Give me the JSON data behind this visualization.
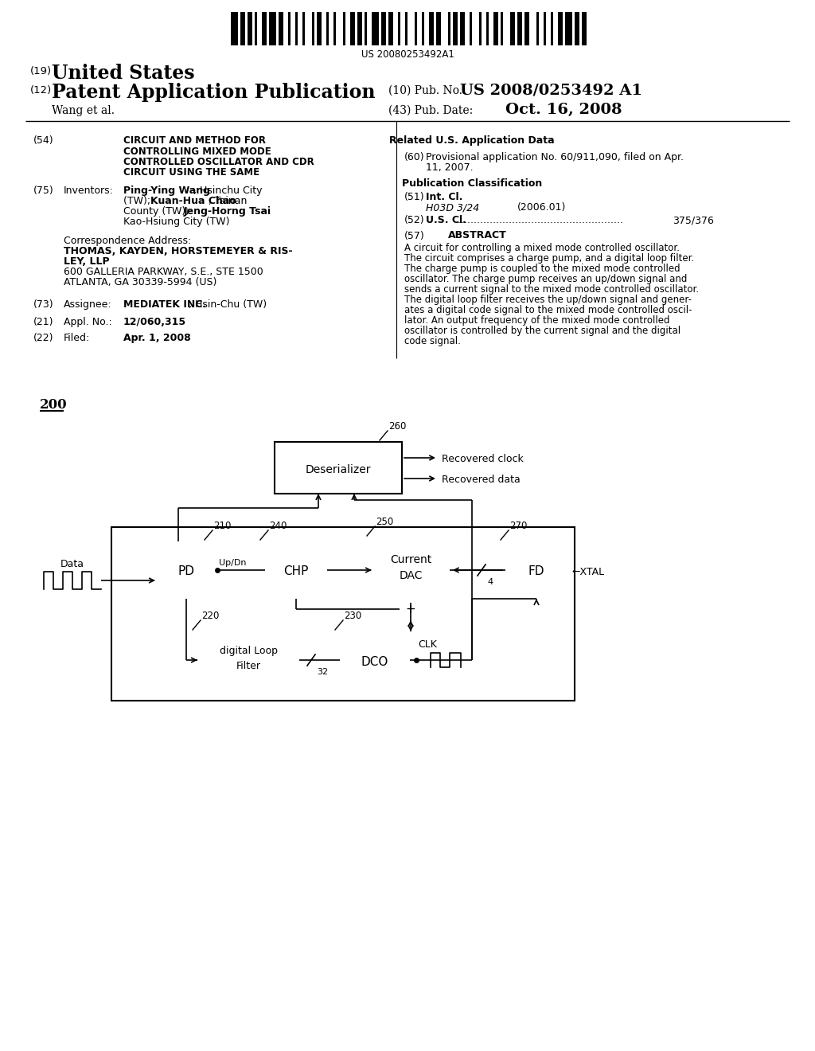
{
  "background_color": "#ffffff",
  "barcode_text": "US 20080253492A1",
  "header_19": "(19)",
  "header_19_text": "United States",
  "header_12": "(12)",
  "header_12_text": "Patent Application Publication",
  "header_10_label": "(10) Pub. No.:",
  "header_10_value": "US 2008/0253492 A1",
  "author": "Wang et al.",
  "header_43_label": "(43) Pub. Date:",
  "header_43_value": "Oct. 16, 2008",
  "section54_num": "(54)",
  "section54_text": "CIRCUIT AND METHOD FOR\nCONTROLLING MIXED MODE\nCONTROLLED OSCILLATOR AND CDR\nCIRCUIT USING THE SAME",
  "section75_num": "(75)",
  "section75_label": "Inventors:",
  "section75_text": "Ping-Ying Wang, Hsinchu City\n(TW); Kuan-Hua Chao, Tainan\nCounty (TW); Jeng-Horng Tsai,\nKao-Hsiung City (TW)",
  "correspondence_label": "Correspondence Address:",
  "correspondence_text": "THOMAS, KAYDEN, HORSTEMEYER & RIS-\nLEY, LLP\n600 GALLERIA PARKWAY, S.E., STE 1500\nATLANTA, GA 30339-5994 (US)",
  "section73_num": "(73)",
  "section73_label": "Assignee:",
  "section73_bold": "MEDIATEK INC.",
  "section73_rest": ", Hsin-Chu (TW)",
  "section21_num": "(21)",
  "section21_label": "Appl. No.:",
  "section21_text": "12/060,315",
  "section22_num": "(22)",
  "section22_label": "Filed:",
  "section22_text": "Apr. 1, 2008",
  "related_header": "Related U.S. Application Data",
  "section60_num": "(60)",
  "section60_text": "Provisional application No. 60/911,090, filed on Apr.\n11, 2007.",
  "pub_class_header": "Publication Classification",
  "section51_num": "(51)",
  "section51_label": "Int. Cl.",
  "section51_class": "H03D 3/24",
  "section51_year": "(2006.01)",
  "section52_num": "(52)",
  "section52_label": "U.S. Cl.",
  "section52_dots": ".....................................................",
  "section52_value": "375/376",
  "section57_num": "(57)",
  "section57_header": "ABSTRACT",
  "abstract_text": "A circuit for controlling a mixed mode controlled oscillator.\nThe circuit comprises a charge pump, and a digital loop filter.\nThe charge pump is coupled to the mixed mode controlled\noscillator. The charge pump receives an up/down signal and\nsends a current signal to the mixed mode controlled oscillator.\nThe digital loop filter receives the up/down signal and gener-\nates a digital code signal to the mixed mode controlled oscil-\nlator. An output frequency of the mixed mode controlled\noscillator is controlled by the current signal and the digital\ncode signal.",
  "diagram_label": "200"
}
